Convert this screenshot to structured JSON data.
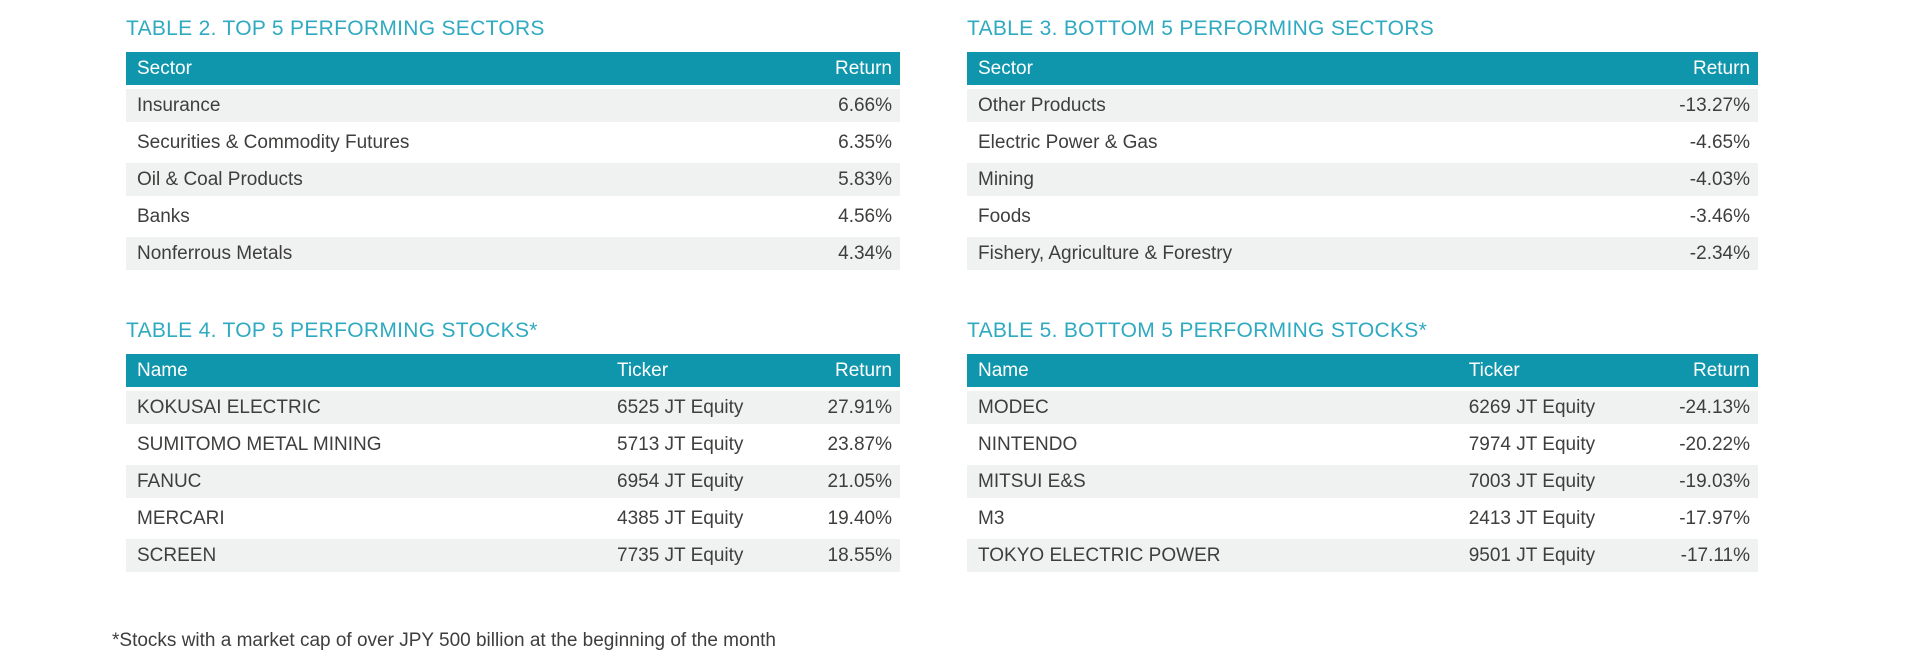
{
  "colors": {
    "title_teal": "#2FAAC0",
    "header_teal": "#1096AC",
    "row_stripe": "#F0F1F1",
    "text": "#3E3E3D"
  },
  "tables": [
    {
      "title": "TABLE 2. TOP 5 PERFORMING SECTORS",
      "columns": [
        "Sector",
        "Return"
      ],
      "rows": [
        [
          "Insurance",
          "6.66%"
        ],
        [
          "Securities & Commodity Futures",
          "6.35%"
        ],
        [
          "Oil & Coal Products",
          "5.83%"
        ],
        [
          "Banks",
          "4.56%"
        ],
        [
          "Nonferrous Metals",
          "4.34%"
        ]
      ]
    },
    {
      "title": "TABLE 3. BOTTOM 5 PERFORMING SECTORS",
      "columns": [
        "Sector",
        "Return"
      ],
      "rows": [
        [
          "Other Products",
          "-13.27%"
        ],
        [
          "Electric Power & Gas",
          "-4.65%"
        ],
        [
          "Mining",
          "-4.03%"
        ],
        [
          "Foods",
          "-3.46%"
        ],
        [
          "Fishery, Agriculture & Forestry",
          "-2.34%"
        ]
      ]
    },
    {
      "title": "TABLE 4. TOP 5 PERFORMING STOCKS*",
      "columns": [
        "Name",
        "Ticker",
        "Return"
      ],
      "rows": [
        [
          "KOKUSAI ELECTRIC",
          "6525 JT Equity",
          "27.91%"
        ],
        [
          "SUMITOMO METAL MINING",
          "5713 JT Equity",
          "23.87%"
        ],
        [
          "FANUC",
          "6954 JT Equity",
          "21.05%"
        ],
        [
          "MERCARI",
          "4385 JT Equity",
          "19.40%"
        ],
        [
          "SCREEN",
          "7735 JT Equity",
          "18.55%"
        ]
      ]
    },
    {
      "title": "TABLE 5. BOTTOM 5 PERFORMING STOCKS*",
      "columns": [
        "Name",
        "Ticker",
        "Return"
      ],
      "rows": [
        [
          "MODEC",
          "6269 JT Equity",
          "-24.13%"
        ],
        [
          "NINTENDO",
          "7974 JT Equity",
          "-20.22%"
        ],
        [
          "MITSUI E&S",
          "7003 JT Equity",
          "-19.03%"
        ],
        [
          "M3",
          "2413 JT Equity",
          "-17.97%"
        ],
        [
          "TOKYO ELECTRIC POWER",
          "9501 JT Equity",
          "-17.11%"
        ]
      ]
    }
  ],
  "footnote": "*Stocks with a market cap of over JPY 500 billion at the beginning of the month"
}
